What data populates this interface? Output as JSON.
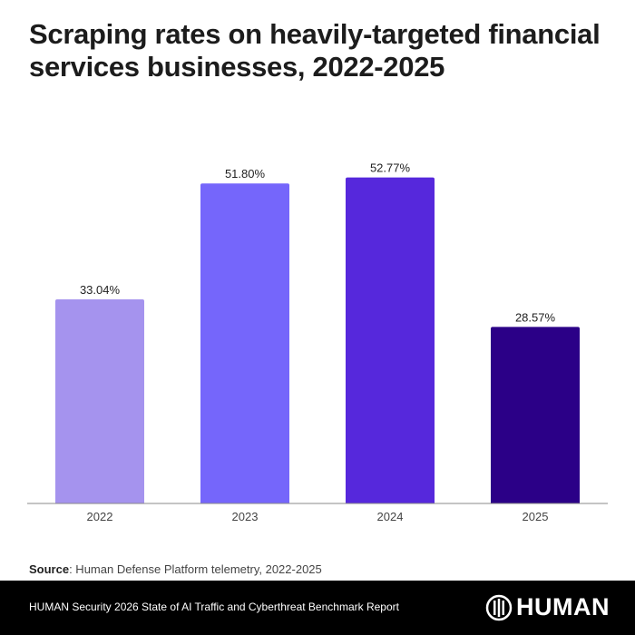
{
  "title": "Scraping rates on heavily-targeted financial services businesses, 2022-2025",
  "chart_data": {
    "type": "bar",
    "title": "Scraping rates on heavily-targeted financial services businesses, 2022-2025",
    "categories": [
      "2022",
      "2023",
      "2024",
      "2025"
    ],
    "values": [
      33.04,
      51.8,
      52.77,
      28.57
    ],
    "value_labels": [
      "33.04%",
      "51.80%",
      "52.77%",
      "28.57%"
    ],
    "colors": [
      "#a593ee",
      "#7566fb",
      "#5628dc",
      "#2b0087"
    ],
    "xlabel": "",
    "ylabel": "",
    "ylim": [
      0,
      58
    ],
    "grid": false,
    "legend": "none"
  },
  "source": {
    "label": "Source",
    "text": ": Human Defense Platform telemetry, 2022-2025"
  },
  "footer": {
    "report_title": "HUMAN Security 2026 State of AI Traffic and Cyberthreat Benchmark Report",
    "logo_text": "HUMAN"
  }
}
